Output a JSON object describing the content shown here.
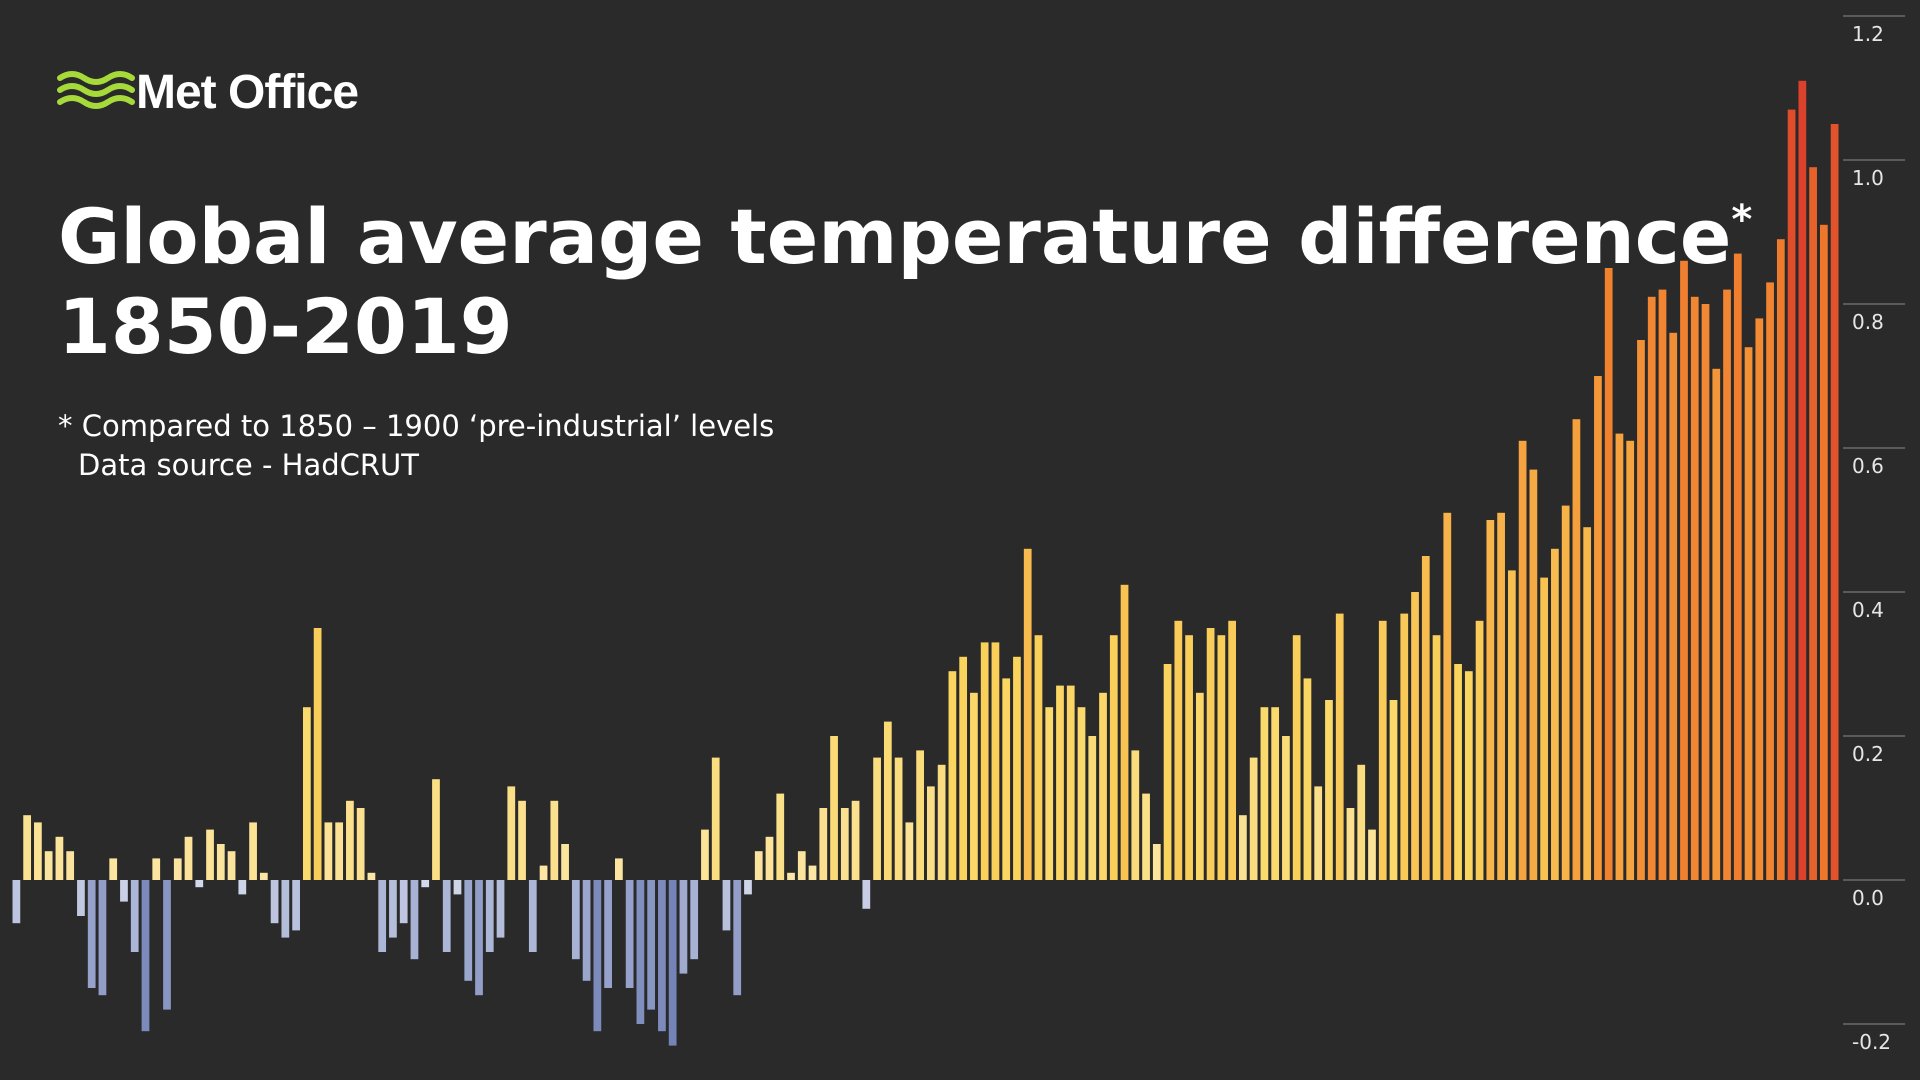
{
  "chart_data": {
    "type": "bar",
    "brand": "Met Office",
    "title": "Global average temperature difference",
    "title_mark": "*",
    "subtitle": "1850-2019",
    "notes": [
      "* Compared to 1850 – 1900 ‘pre-industrial’ levels",
      "Data source - HadCRUT"
    ],
    "values": [
      -0.06,
      0.09,
      0.08,
      0.04,
      0.06,
      0.04,
      -0.05,
      -0.15,
      -0.16,
      0.03,
      -0.03,
      -0.1,
      -0.21,
      0.03,
      -0.18,
      0.03,
      0.06,
      -0.01,
      0.07,
      0.05,
      0.04,
      -0.02,
      0.08,
      0.01,
      -0.06,
      -0.08,
      -0.07,
      0.24,
      0.35,
      0.08,
      0.08,
      0.11,
      0.1,
      0.01,
      -0.1,
      -0.08,
      -0.06,
      -0.11,
      -0.01,
      0.14,
      -0.1,
      -0.02,
      -0.14,
      -0.16,
      -0.1,
      -0.08,
      0.13,
      0.11,
      -0.1,
      0.02,
      0.11,
      0.05,
      -0.11,
      -0.14,
      -0.21,
      -0.15,
      0.03,
      -0.15,
      -0.2,
      -0.18,
      -0.21,
      -0.23,
      -0.13,
      -0.11,
      0.07,
      0.17,
      -0.07,
      -0.16,
      -0.02,
      0.04,
      0.06,
      0.12,
      0.01,
      0.04,
      0.02,
      0.1,
      0.2,
      0.1,
      0.11,
      -0.04,
      0.17,
      0.22,
      0.17,
      0.08,
      0.18,
      0.13,
      0.16,
      0.29,
      0.31,
      0.26,
      0.33,
      0.33,
      0.28,
      0.31,
      0.46,
      0.34,
      0.24,
      0.27,
      0.27,
      0.24,
      0.2,
      0.26,
      0.34,
      0.41,
      0.18,
      0.12,
      0.05,
      0.3,
      0.36,
      0.34,
      0.26,
      0.35,
      0.34,
      0.36,
      0.09,
      0.17,
      0.24,
      0.24,
      0.2,
      0.34,
      0.28,
      0.13,
      0.25,
      0.37,
      0.1,
      0.16,
      0.07,
      0.36,
      0.25,
      0.37,
      0.4,
      0.45,
      0.34,
      0.51,
      0.3,
      0.29,
      0.36,
      0.5,
      0.51,
      0.43,
      0.61,
      0.57,
      0.42,
      0.46,
      0.52,
      0.64,
      0.49,
      0.7,
      0.85,
      0.62,
      0.61,
      0.75,
      0.81,
      0.82,
      0.76,
      0.86,
      0.81,
      0.8,
      0.71,
      0.82,
      0.87,
      0.74,
      0.78,
      0.83,
      0.89,
      1.07,
      1.11,
      0.99,
      0.91,
      1.05
    ],
    "negative_colors": [
      "#6b7bb3",
      "#d7ddee"
    ],
    "positive_colors": [
      "#fbe7a8",
      "#fad55e",
      "#f6a540",
      "#ef7a2c",
      "#d42a2a"
    ],
    "ylim": [
      -0.25,
      1.2
    ],
    "yticks": [
      -0.2,
      {
        "value": 0,
        "label": "0.0"
      },
      0.2,
      0.4,
      0.6,
      0.8,
      {
        "value": 1,
        "label": "1.0"
      },
      1.2
    ],
    "grid": true
  }
}
